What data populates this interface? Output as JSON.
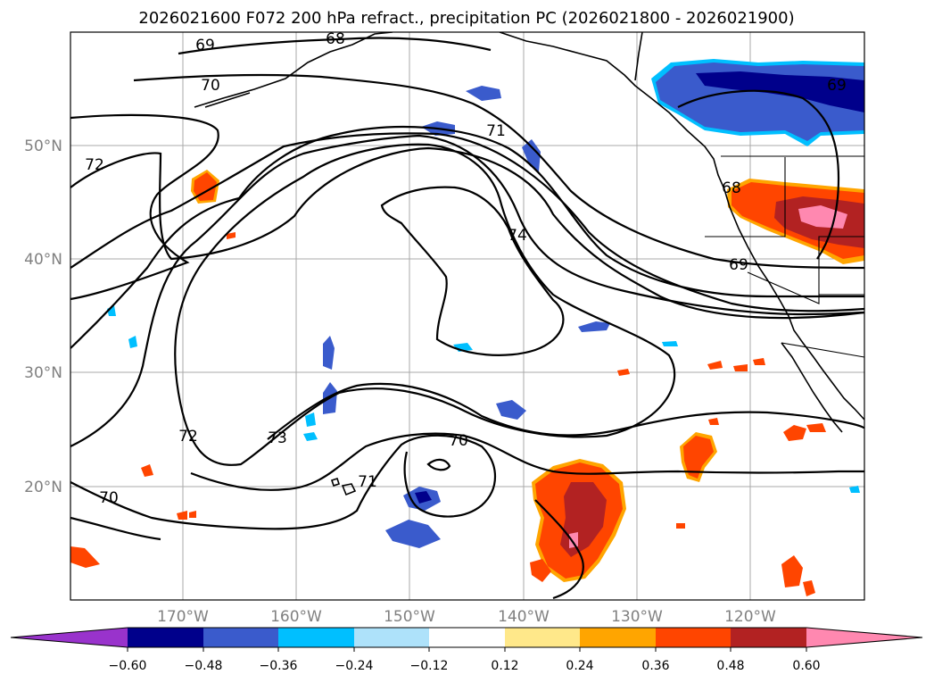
{
  "title": "2026021600 F072 200 hPa refract., precipitation PC (2026021800 - 2026021900)",
  "map": {
    "lat_labels": [
      "50°N",
      "40°N",
      "30°N",
      "20°N"
    ],
    "lon_labels": [
      "170°W",
      "160°W",
      "150°W",
      "140°W",
      "130°W",
      "120°W"
    ],
    "contour_labels": [
      "69",
      "70",
      "68",
      "71",
      "72",
      "74",
      "73",
      "72",
      "70",
      "71",
      "70",
      "68",
      "69",
      "69"
    ]
  },
  "colorbar": {
    "ticks": [
      "−0.60",
      "−0.48",
      "−0.36",
      "−0.24",
      "−0.12",
      "0.12",
      "0.24",
      "0.36",
      "0.48",
      "0.60"
    ],
    "colors": [
      "#9933cc",
      "#00008b",
      "#3a5bcc",
      "#00bfff",
      "#aee2fa",
      "#ffffff",
      "#ffe88a",
      "#ffa500",
      "#ff4500",
      "#b22222",
      "#ff88b0"
    ]
  },
  "colors": {
    "strong_negative": "#00008b",
    "negative": "#3a5bcc",
    "weak_negative": "#00bfff",
    "faint_negative": "#aee2fa",
    "faint_positive": "#ffe88a",
    "weak_positive": "#ffa500",
    "positive": "#ff4500",
    "strong_positive": "#b22222",
    "extreme_positive": "#ff88b0"
  }
}
